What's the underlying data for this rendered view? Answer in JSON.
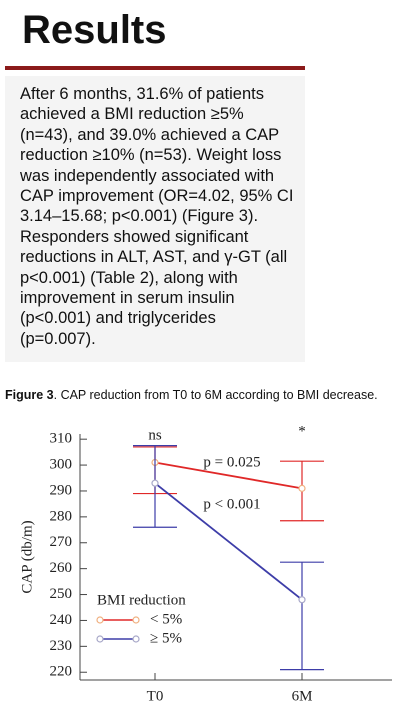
{
  "header": {
    "title": "Results"
  },
  "body": {
    "lines": [
      "After 6 months, 31.6% of patients",
      "achieved a BMI reduction ≥5%",
      "(n=43), and 39.0% achieved a CAP",
      "reduction ≥10% (n=53). Weight loss",
      "was independently associated with",
      "CAP improvement (OR=4.02, 95% CI",
      "3.14–15.68; p<0.001) (Figure 3).",
      "Responders showed significant",
      "reductions in ALT, AST, and γ-GT (all",
      "p<0.001) (Table 2), along with",
      "improvement in serum insulin",
      "(p<0.001) and triglycerides",
      "(p=0.007)."
    ]
  },
  "figure": {
    "caption_label": "Figure 3",
    "caption": ". CAP reduction from T0 to 6M according to BMI decrease."
  },
  "chart_data": {
    "type": "line",
    "y_label": "CAP (db/m)",
    "categories": [
      "T0",
      "6M"
    ],
    "ylim": [
      217,
      312
    ],
    "yticks": [
      220,
      230,
      240,
      250,
      260,
      270,
      280,
      290,
      300,
      310
    ],
    "legend_title": "BMI reduction",
    "series": [
      {
        "name": "< 5%",
        "color": "#e02828",
        "marker_color": "#f0b080",
        "values": [
          301,
          291
        ],
        "upper": [
          307,
          301.5
        ],
        "lower": [
          289,
          278.5
        ]
      },
      {
        "name": "≥ 5%",
        "color": "#3d3da8",
        "marker_color": "#a8a8c8",
        "values": [
          293,
          248
        ],
        "upper": [
          307.5,
          262.5
        ],
        "lower": [
          276,
          221
        ]
      }
    ],
    "annotations": [
      "ns",
      "*",
      "p = 0.025",
      "p < 0.001"
    ]
  }
}
